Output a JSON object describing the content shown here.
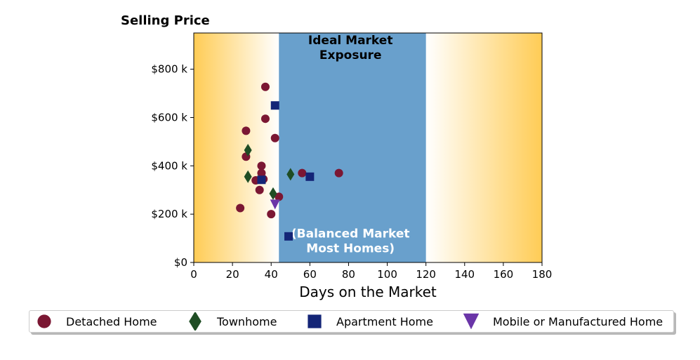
{
  "chart_data": {
    "type": "scatter",
    "title": "Selling Price",
    "xlabel": "Days on the Market",
    "ylabel": "",
    "xlim": [
      0,
      180
    ],
    "ylim": [
      0,
      950000
    ],
    "xticks": [
      0,
      20,
      40,
      60,
      80,
      100,
      120,
      140,
      160,
      180
    ],
    "yticks": [
      0,
      200000,
      400000,
      600000,
      800000
    ],
    "ytick_labels": [
      "$0",
      "$200 k",
      "$400 k",
      "$600 k",
      "$800 k"
    ],
    "grid": false,
    "legend_position": "bottom",
    "background": {
      "gradient_color": "#ffcc55",
      "shaded_band": {
        "x_start": 44,
        "x_end": 120,
        "color": "#69a0cc"
      }
    },
    "annotations": [
      {
        "text_lines": [
          "Ideal Market",
          "Exposure"
        ],
        "x": 81,
        "y": 890000,
        "color": "#000000"
      },
      {
        "text_lines": [
          "(Balanced Market",
          "Most Homes)"
        ],
        "x": 81,
        "y": 90000,
        "color": "#ffffff"
      }
    ],
    "series": [
      {
        "name": "Detached Home",
        "marker": "circle",
        "color": "#7b1733",
        "points": [
          [
            24,
            225000
          ],
          [
            27,
            438000
          ],
          [
            27,
            545000
          ],
          [
            32,
            340000
          ],
          [
            34,
            300000
          ],
          [
            35,
            400000
          ],
          [
            35,
            370000
          ],
          [
            36,
            345000
          ],
          [
            37,
            595000
          ],
          [
            37,
            727000
          ],
          [
            40,
            200000
          ],
          [
            42,
            515000
          ],
          [
            44,
            272000
          ],
          [
            56,
            370000
          ],
          [
            75,
            370000
          ]
        ]
      },
      {
        "name": "Townhome",
        "marker": "diamond",
        "color": "#1f4d24",
        "points": [
          [
            28,
            465000
          ],
          [
            28,
            355000
          ],
          [
            41,
            285000
          ],
          [
            50,
            365000
          ]
        ]
      },
      {
        "name": "Apartment Home",
        "marker": "square",
        "color": "#142577",
        "points": [
          [
            42,
            650000
          ],
          [
            35,
            342000
          ],
          [
            60,
            355000
          ],
          [
            49,
            108000
          ]
        ]
      },
      {
        "name": "Mobile or Manufactured Home",
        "marker": "triangle-down",
        "color": "#6a35a8",
        "points": [
          [
            42,
            240000
          ]
        ]
      }
    ]
  }
}
